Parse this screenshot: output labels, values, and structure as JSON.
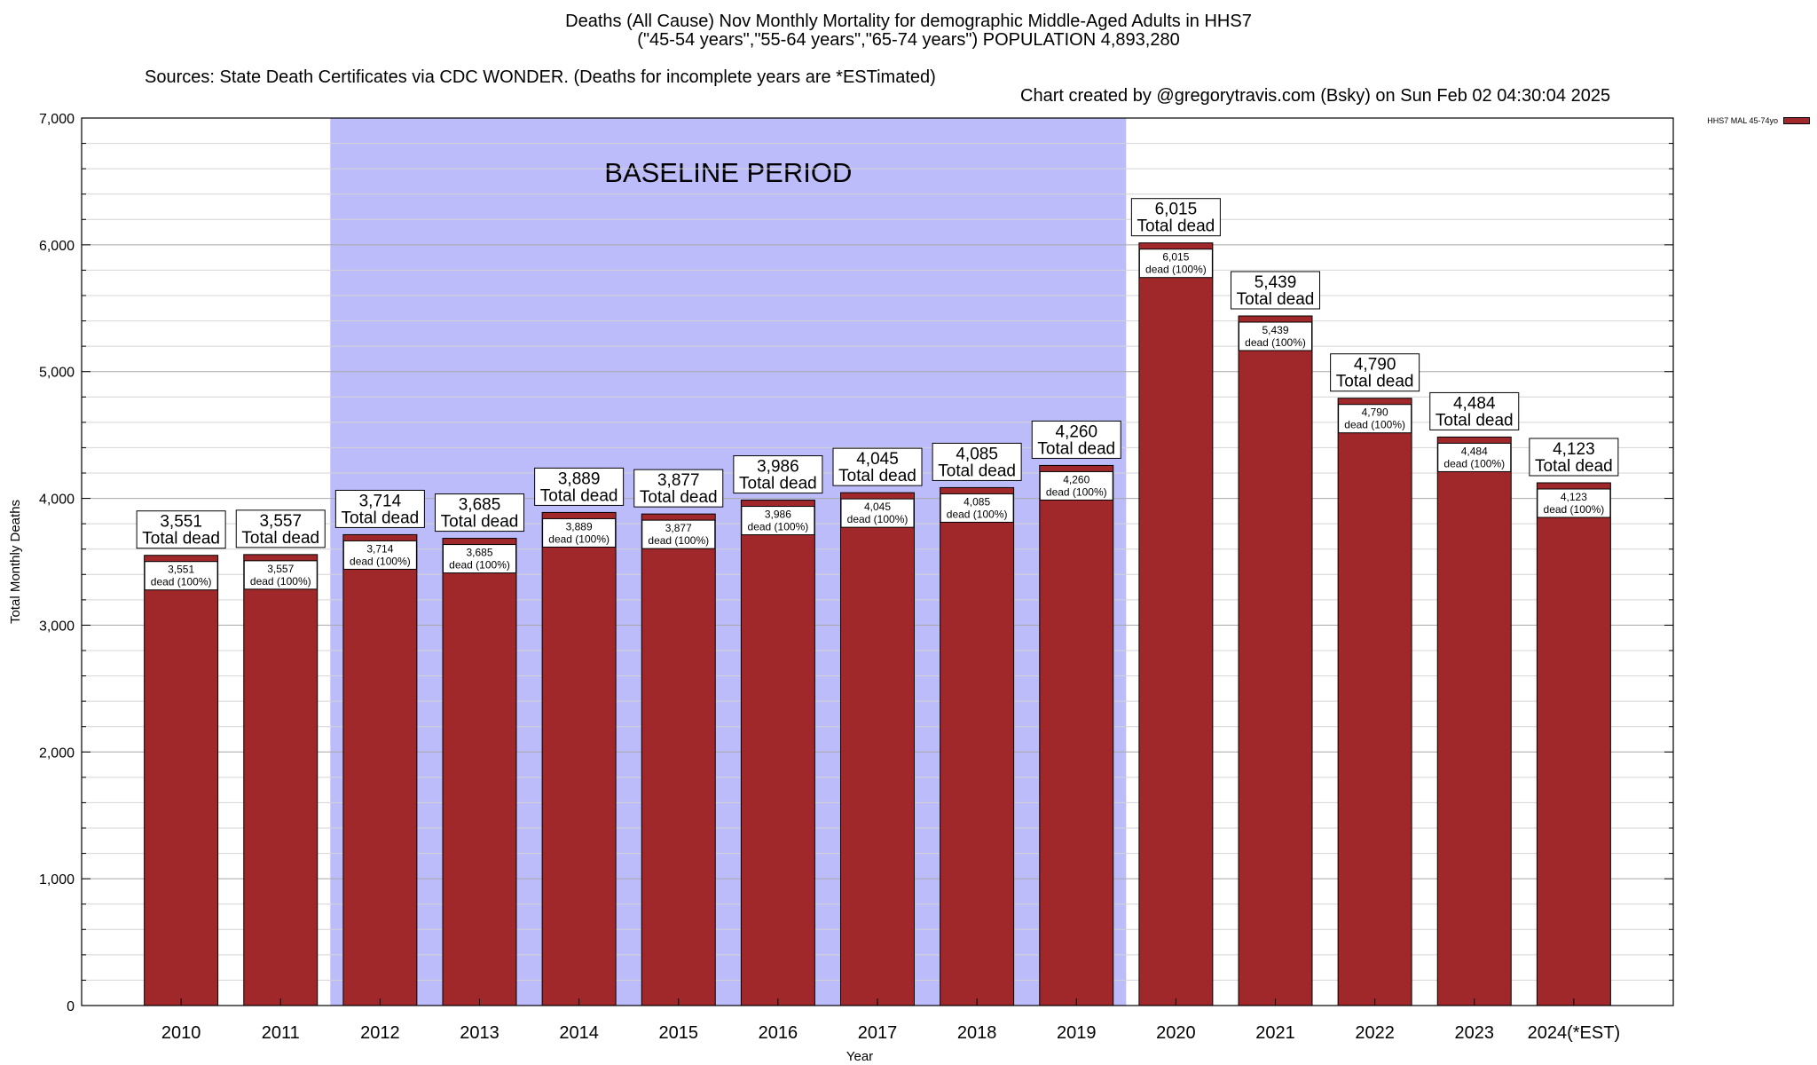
{
  "header": {
    "title_line1": "Deaths (All Cause) Nov Monthly Mortality for demographic Middle-Aged Adults in HHS7",
    "title_line2": "(\"45-54 years\",\"55-64 years\",\"65-74 years\") POPULATION 4,893,280",
    "sources": "Sources: State Death Certificates via CDC WONDER. (Deaths for incomplete years are *ESTimated)",
    "credit": "Chart created by @gregorytravis.com (Bsky) on Sun Feb 02 04:30:04 2025"
  },
  "legend": {
    "label": "HHS7 MAL 45-74yo"
  },
  "colors": {
    "bar": "#a0282a",
    "baseline": "#bcbcfa"
  },
  "chart_data": {
    "type": "bar",
    "categories": [
      "2010",
      "2011",
      "2012",
      "2013",
      "2014",
      "2015",
      "2016",
      "2017",
      "2018",
      "2019",
      "2020",
      "2021",
      "2022",
      "2023",
      "2024(*EST)"
    ],
    "series": [
      {
        "name": "HHS7 MAL 45-74yo",
        "values": [
          3551,
          3557,
          3714,
          3685,
          3889,
          3877,
          3986,
          4045,
          4085,
          4260,
          6015,
          5439,
          4790,
          4484,
          4123
        ]
      }
    ],
    "value_labels": [
      "3,551",
      "3,557",
      "3,714",
      "3,685",
      "3,889",
      "3,877",
      "3,986",
      "4,045",
      "4,085",
      "4,260",
      "6,015",
      "5,439",
      "4,790",
      "4,484",
      "4,123"
    ],
    "label_top_suffix": "Total dead",
    "label_inner_suffix": "dead (100%)",
    "xlabel": "Year",
    "ylabel": "Total Monthly Deaths",
    "ylim": [
      0,
      7000
    ],
    "yticks": [
      0,
      1000,
      2000,
      3000,
      4000,
      5000,
      6000,
      7000
    ],
    "ytick_labels": [
      "0",
      "1,000",
      "2,000",
      "3,000",
      "4,000",
      "5,000",
      "6,000",
      "7,000"
    ],
    "minor_step": 200,
    "grid": true,
    "baseline_period": {
      "label": "BASELINE PERIOD",
      "from": "2012",
      "to": "2019"
    },
    "legend_position": "top-right"
  }
}
